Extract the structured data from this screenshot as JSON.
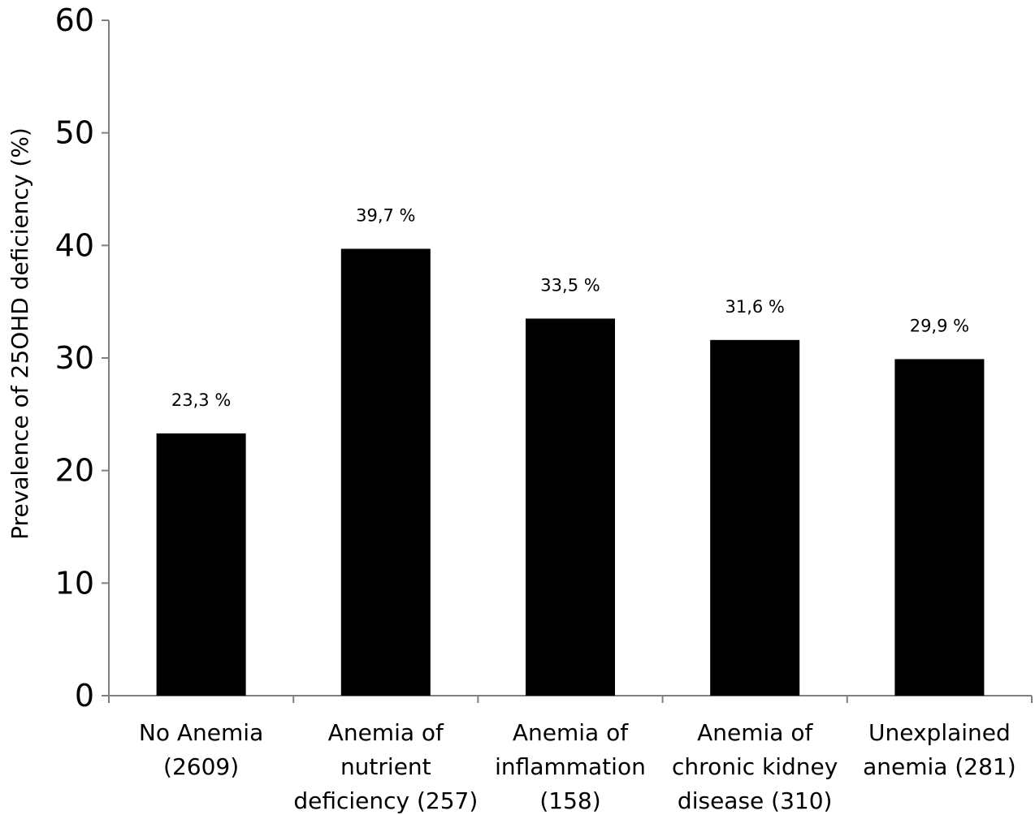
{
  "chart_data": {
    "type": "bar",
    "title": "",
    "xlabel": "",
    "ylabel": "Prevalence of 25OHD deficiency (%)",
    "ylim": [
      0,
      60
    ],
    "yticks": [
      0,
      10,
      20,
      30,
      40,
      50,
      60
    ],
    "grid": false,
    "categories": [
      [
        "No Anemia",
        "(2609)"
      ],
      [
        "Anemia of",
        "nutrient",
        "deficiency (257)"
      ],
      [
        "Anemia of",
        "inflammation",
        "(158)"
      ],
      [
        "Anemia of",
        "chronic kidney",
        "disease (310)"
      ],
      [
        "Unexplained",
        "anemia (281)"
      ]
    ],
    "values": [
      23.3,
      39.7,
      33.5,
      31.6,
      29.9
    ],
    "value_labels": [
      "23,3 %",
      "39,7 %",
      "33,5 %",
      "31,6 %",
      "29,9 %"
    ],
    "bar_color": "#000000",
    "axis_color": "#808080"
  }
}
